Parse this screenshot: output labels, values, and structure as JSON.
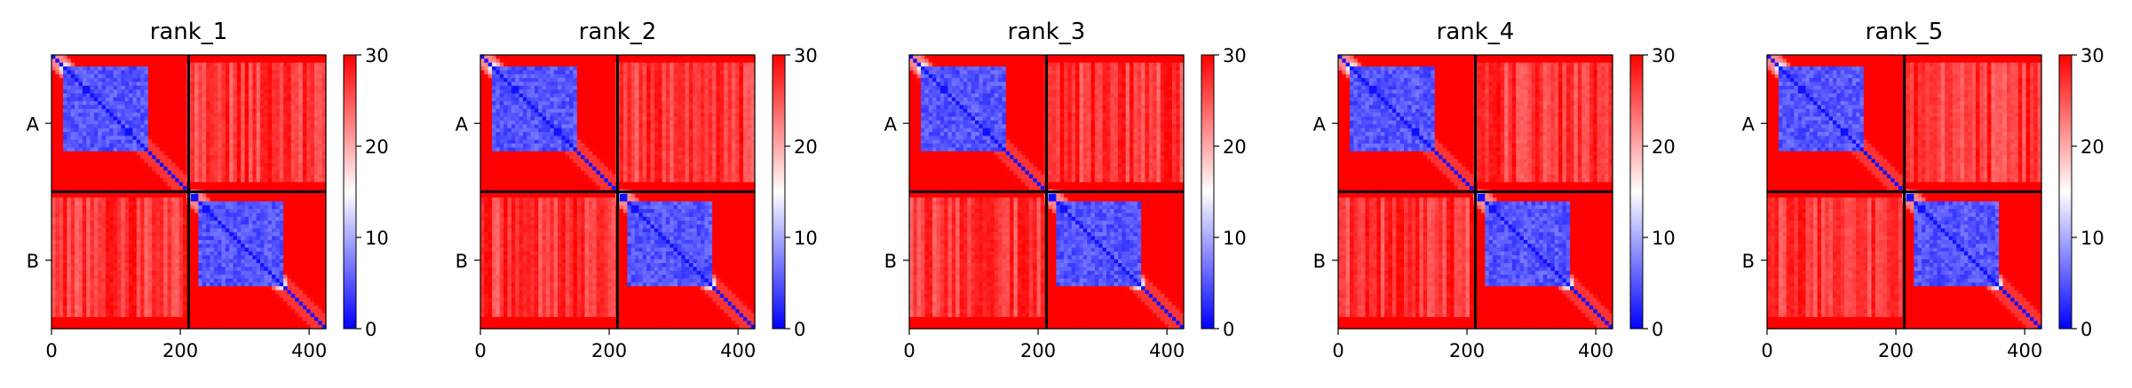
{
  "figure": {
    "colorbar": {
      "min": 0,
      "max": 30,
      "ticks": [
        0,
        10,
        20,
        30
      ],
      "colors": {
        "low": "#0000ff",
        "mid": "#ffffff",
        "high": "#ff0000"
      }
    },
    "divider_color": "#000000"
  },
  "chart_data": [
    {
      "type": "heatmap",
      "title": "rank_1",
      "xlim": [
        0,
        426
      ],
      "ylim": [
        426,
        0
      ],
      "xticks": [
        0,
        200,
        400
      ],
      "chain_boundaries": [
        0,
        213,
        426
      ],
      "chain_labels": [
        "A",
        "B"
      ],
      "colorbar_range": [
        0,
        30
      ],
      "colorbar_ticks": [
        0,
        10,
        20,
        30
      ],
      "colormap": "bwr",
      "pattern": {
        "intra_chain_error": "low (blue, ~0-5), rising along the middle and ends of each chain",
        "inter_chain_error": "high (red, ~25-30) with faint lighter vertical striping"
      }
    },
    {
      "type": "heatmap",
      "title": "rank_2",
      "xlim": [
        0,
        426
      ],
      "ylim": [
        426,
        0
      ],
      "xticks": [
        0,
        200,
        400
      ],
      "chain_boundaries": [
        0,
        213,
        426
      ],
      "chain_labels": [
        "A",
        "B"
      ],
      "colorbar_range": [
        0,
        30
      ],
      "colorbar_ticks": [
        0,
        10,
        20,
        30
      ],
      "colormap": "bwr"
    },
    {
      "type": "heatmap",
      "title": "rank_3",
      "xlim": [
        0,
        426
      ],
      "ylim": [
        426,
        0
      ],
      "xticks": [
        0,
        200,
        400
      ],
      "chain_boundaries": [
        0,
        213,
        426
      ],
      "chain_labels": [
        "A",
        "B"
      ],
      "colorbar_range": [
        0,
        30
      ],
      "colorbar_ticks": [
        0,
        10,
        20,
        30
      ],
      "colormap": "bwr"
    },
    {
      "type": "heatmap",
      "title": "rank_4",
      "xlim": [
        0,
        426
      ],
      "ylim": [
        426,
        0
      ],
      "xticks": [
        0,
        200,
        400
      ],
      "chain_boundaries": [
        0,
        213,
        426
      ],
      "chain_labels": [
        "A",
        "B"
      ],
      "colorbar_range": [
        0,
        30
      ],
      "colorbar_ticks": [
        0,
        10,
        20,
        30
      ],
      "colormap": "bwr"
    },
    {
      "type": "heatmap",
      "title": "rank_5",
      "xlim": [
        0,
        426
      ],
      "ylim": [
        426,
        0
      ],
      "xticks": [
        0,
        200,
        400
      ],
      "chain_boundaries": [
        0,
        213,
        426
      ],
      "chain_labels": [
        "A",
        "B"
      ],
      "colorbar_range": [
        0,
        30
      ],
      "colorbar_ticks": [
        0,
        10,
        20,
        30
      ],
      "colormap": "bwr"
    }
  ]
}
